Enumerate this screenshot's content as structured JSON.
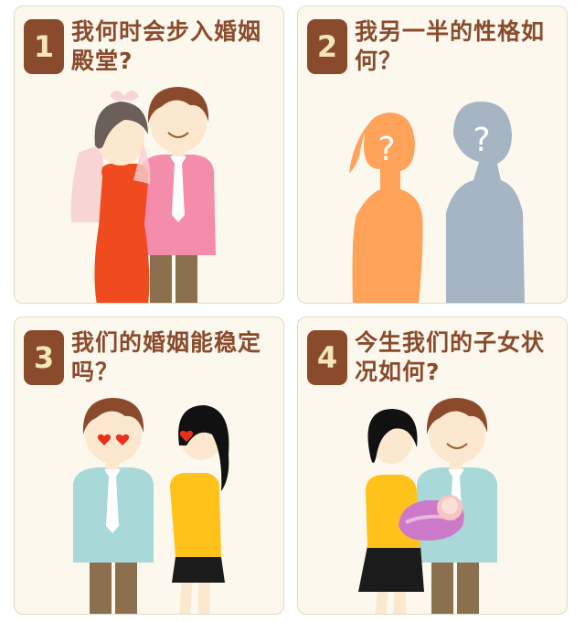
{
  "colors": {
    "card_bg": "#fdf8ee",
    "badge_bg": "#8a4a2c",
    "badge_text": "#f6e7b9",
    "question_text": "#8a4a2c"
  },
  "cards": [
    {
      "number": "1",
      "question": "我何时会步入婚姻殿堂?",
      "illustration": "bride-and-groom"
    },
    {
      "number": "2",
      "question": "我另一半的性格如何？",
      "illustration": "two-silhouettes-with-question-marks"
    },
    {
      "number": "3",
      "question": "我们的婚姻能稳定吗？",
      "illustration": "couple-heart-eyes"
    },
    {
      "number": "4",
      "question": "今生我们的子女状况如何?",
      "illustration": "family-with-baby"
    }
  ],
  "silhouette_marks": [
    "?",
    "?"
  ]
}
